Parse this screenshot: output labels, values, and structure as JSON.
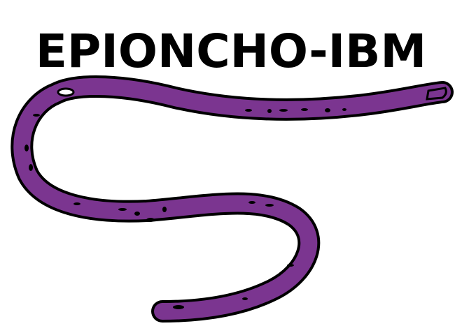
{
  "logo": {
    "title": "EPIONCHO-IBM"
  },
  "worm": {
    "icon": "worm-icon",
    "fill_color": "#7b3590",
    "outline_color": "#000000"
  }
}
